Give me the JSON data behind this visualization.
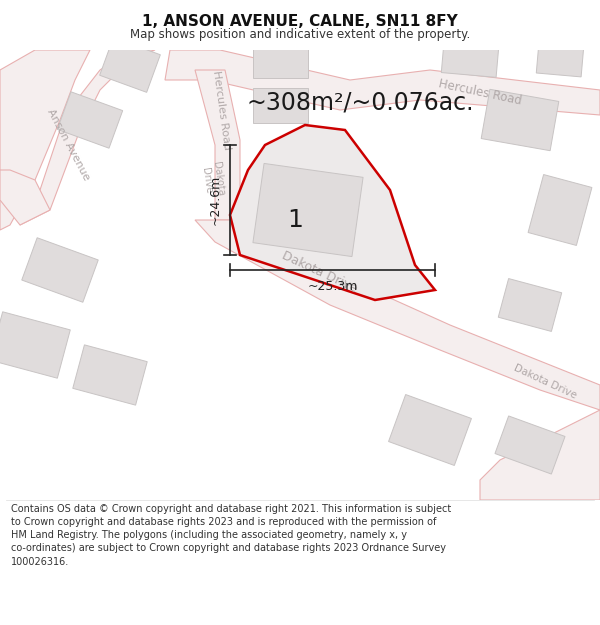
{
  "title": "1, ANSON AVENUE, CALNE, SN11 8FY",
  "subtitle": "Map shows position and indicative extent of the property.",
  "area_text": "~308m²/~0.076ac.",
  "plot_number": "1",
  "dim_vertical": "~24.6m",
  "dim_horizontal": "~25.3m",
  "footer": "Contains OS data © Crown copyright and database right 2021. This information is subject to Crown copyright and database rights 2023 and is reproduced with the permission of HM Land Registry. The polygons (including the associated geometry, namely x, y co-ordinates) are subject to Crown copyright and database rights 2023 Ordnance Survey 100026316.",
  "bg_color": "#ffffff",
  "map_bg": "#f8f6f6",
  "road_line_color": "#e8b0b0",
  "road_fill_color": "#f5eeee",
  "building_fill": "#e0dcdc",
  "building_edge": "#c8c4c4",
  "road_label_color": "#b0a8a8",
  "plot_fill": "#ece8e8",
  "plot_edge": "#cc0000",
  "dim_color": "#222222",
  "text_dark": "#222222",
  "footer_color": "#333333"
}
